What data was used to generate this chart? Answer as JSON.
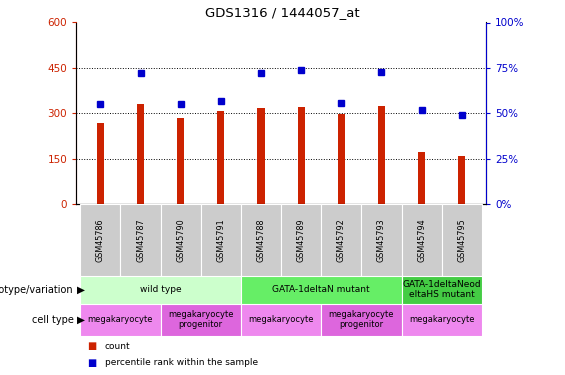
{
  "title": "GDS1316 / 1444057_at",
  "samples": [
    "GSM45786",
    "GSM45787",
    "GSM45790",
    "GSM45791",
    "GSM45788",
    "GSM45789",
    "GSM45792",
    "GSM45793",
    "GSM45794",
    "GSM45795"
  ],
  "counts": [
    268,
    332,
    284,
    308,
    318,
    322,
    297,
    323,
    173,
    160
  ],
  "percentiles": [
    55,
    72,
    55,
    57,
    72,
    74,
    56,
    73,
    52,
    49
  ],
  "ylim_left": [
    0,
    600
  ],
  "ylim_right": [
    0,
    100
  ],
  "yticks_left": [
    0,
    150,
    300,
    450,
    600
  ],
  "ytick_labels_left": [
    "0",
    "150",
    "300",
    "450",
    "600"
  ],
  "yticks_right": [
    0,
    25,
    50,
    75,
    100
  ],
  "ytick_labels_right": [
    "0%",
    "25%",
    "50%",
    "75%",
    "100%"
  ],
  "bar_color": "#cc2200",
  "dot_color": "#0000cc",
  "genotype_groups": [
    {
      "label": "wild type",
      "start": 0,
      "end": 4,
      "color": "#ccffcc"
    },
    {
      "label": "GATA-1deltaN mutant",
      "start": 4,
      "end": 8,
      "color": "#66ee66"
    },
    {
      "label": "GATA-1deltaNeod\neltaHS mutant",
      "start": 8,
      "end": 10,
      "color": "#44cc44"
    }
  ],
  "cell_type_groups": [
    {
      "label": "megakaryocyte",
      "start": 0,
      "end": 2,
      "color": "#ee88ee"
    },
    {
      "label": "megakaryocyte\nprogenitor",
      "start": 2,
      "end": 4,
      "color": "#dd66dd"
    },
    {
      "label": "megakaryocyte",
      "start": 4,
      "end": 6,
      "color": "#ee88ee"
    },
    {
      "label": "megakaryocyte\nprogenitor",
      "start": 6,
      "end": 8,
      "color": "#dd66dd"
    },
    {
      "label": "megakaryocyte",
      "start": 8,
      "end": 10,
      "color": "#ee88ee"
    }
  ]
}
